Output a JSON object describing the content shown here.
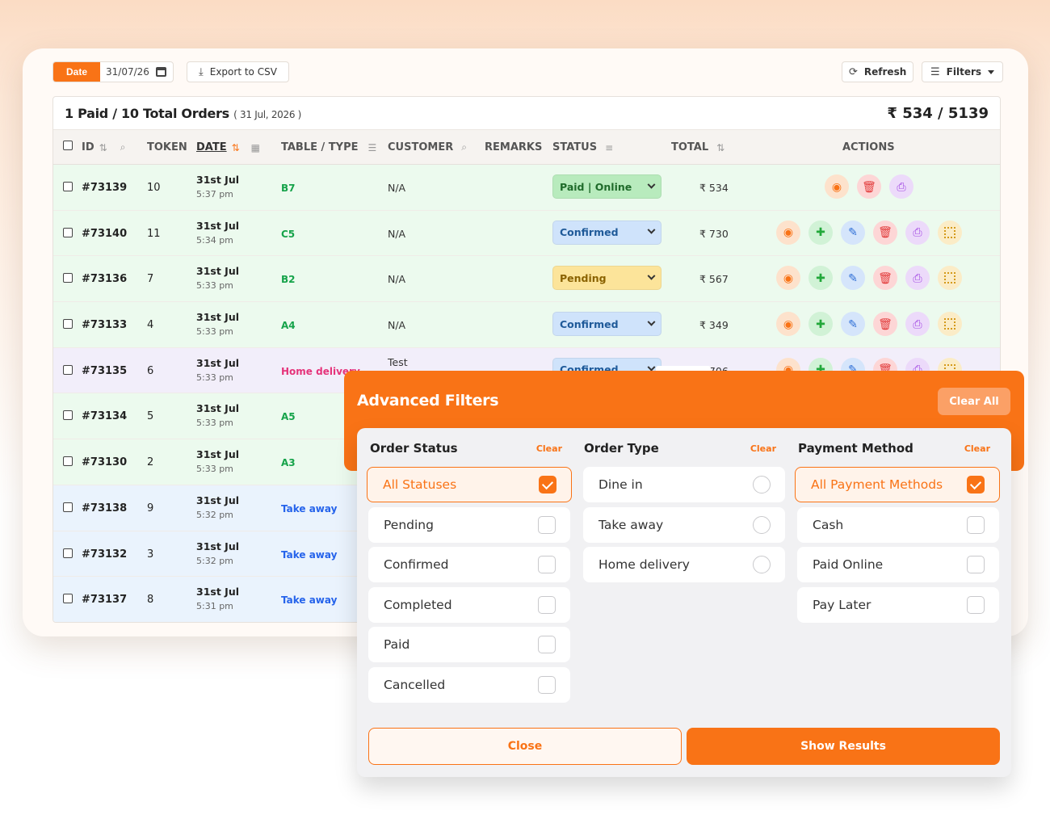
{
  "toolbar": {
    "date_label": "Date",
    "date_value": "31/07/26",
    "export_label": "Export to CSV",
    "refresh_label": "Refresh",
    "filters_label": "Filters"
  },
  "summary": {
    "left": "1 Paid / 10 Total Orders",
    "date": "( 31 Jul, 2026 )",
    "right": "₹ 534 / 5139"
  },
  "table": {
    "headers": {
      "id": "ID",
      "token": "TOKEN",
      "date": "DATE",
      "table_type": "TABLE / TYPE",
      "customer": "CUSTOMER",
      "remarks": "REMARKS",
      "status": "STATUS",
      "total": "TOTAL",
      "actions": "ACTIONS"
    },
    "rows": [
      {
        "id": "#73139",
        "token": "10",
        "date": "31st Jul",
        "time": "5:37 pm",
        "type": "B7",
        "customer": "N/A",
        "status": "Paid | Online",
        "total": "₹ 534"
      },
      {
        "id": "#73140",
        "token": "11",
        "date": "31st Jul",
        "time": "5:34 pm",
        "type": "C5",
        "customer": "N/A",
        "status": "Confirmed",
        "total": "₹ 730"
      },
      {
        "id": "#73136",
        "token": "7",
        "date": "31st Jul",
        "time": "5:33 pm",
        "type": "B2",
        "customer": "N/A",
        "status": "Pending",
        "total": "₹ 567"
      },
      {
        "id": "#73133",
        "token": "4",
        "date": "31st Jul",
        "time": "5:33 pm",
        "type": "A4",
        "customer": "N/A",
        "status": "Confirmed",
        "total": "₹ 349"
      },
      {
        "id": "#73135",
        "token": "6",
        "date": "31st Jul",
        "time": "5:33 pm",
        "type": "Home delivery",
        "remarks": "Test",
        "status": "Confirmed",
        "total": "₹ 706"
      },
      {
        "id": "#73134",
        "token": "5",
        "date": "31st Jul",
        "time": "5:33 pm",
        "type": "A5"
      },
      {
        "id": "#73130",
        "token": "2",
        "date": "31st Jul",
        "time": "5:33 pm",
        "type": "A3"
      },
      {
        "id": "#73138",
        "token": "9",
        "date": "31st Jul",
        "time": "5:32 pm",
        "type": "Take away"
      },
      {
        "id": "#73132",
        "token": "3",
        "date": "31st Jul",
        "time": "5:32 pm",
        "type": "Take away"
      },
      {
        "id": "#73137",
        "token": "8",
        "date": "31st Jul",
        "time": "5:31 pm",
        "type": "Take away"
      }
    ]
  },
  "filters": {
    "title": "Advanced Filters",
    "clear_all": "Clear All",
    "order_status": {
      "title": "Order Status",
      "clear": "Clear",
      "options": [
        "All Statuses",
        "Pending",
        "Confirmed",
        "Completed",
        "Paid",
        "Cancelled"
      ]
    },
    "order_type": {
      "title": "Order Type",
      "clear": "Clear",
      "options": [
        "Dine in",
        "Take away",
        "Home delivery"
      ]
    },
    "payment_method": {
      "title": "Payment Method",
      "clear": "Clear",
      "options": [
        "All Payment Methods",
        "Cash",
        "Paid Online",
        "Pay Later"
      ]
    },
    "close_label": "Close",
    "show_label": "Show Results"
  },
  "colors": {
    "accent": "#f97316",
    "type_green": "#16a34a",
    "type_pink": "#e5337a",
    "type_blue": "#2563eb"
  }
}
